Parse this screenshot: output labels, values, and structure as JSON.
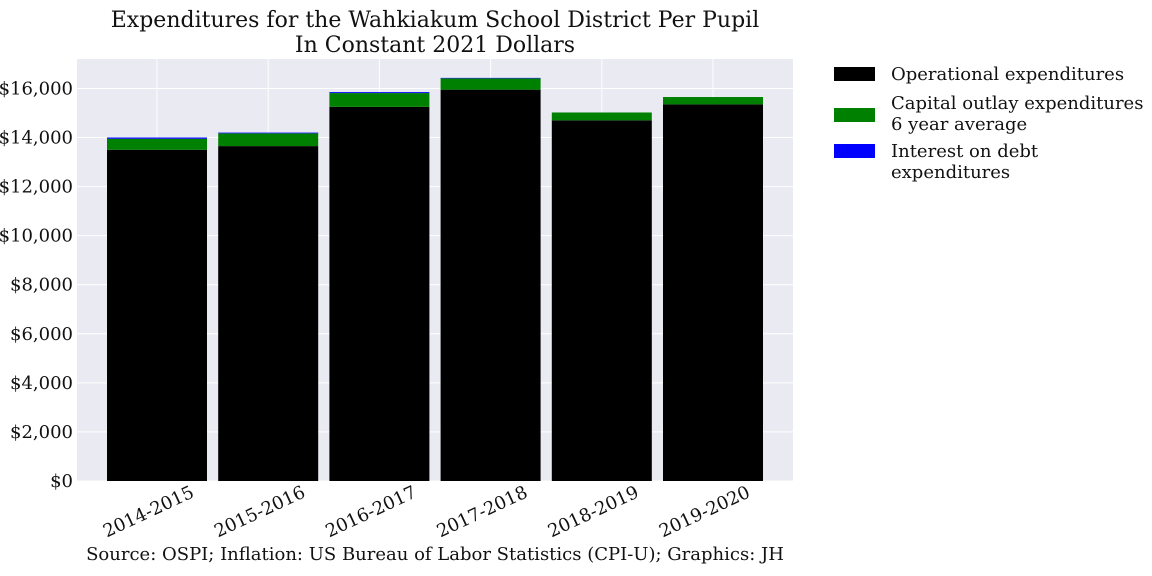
{
  "chart_data": {
    "type": "bar",
    "stacked": true,
    "title": [
      "Expenditures for the Wahkiakum School District Per Pupil",
      "In Constant 2021 Dollars"
    ],
    "source": "Source: OSPI; Inflation: US Bureau of Labor Statistics (CPI-U); Graphics: JH",
    "categories": [
      "2014-2015",
      "2015-2016",
      "2016-2017",
      "2017-2018",
      "2018-2019",
      "2019-2020"
    ],
    "series": [
      {
        "name": "Operational expenditures",
        "color": "#000000",
        "values": [
          13500,
          13650,
          15250,
          15950,
          14700,
          15350
        ]
      },
      {
        "name": "Capital outlay expenditures\n6 year average",
        "color": "#008000",
        "values": [
          450,
          520,
          560,
          460,
          320,
          300
        ]
      },
      {
        "name": "Interest on debt expenditures",
        "color": "#0000ff",
        "values": [
          50,
          30,
          40,
          20,
          0,
          0
        ]
      }
    ],
    "ylim": [
      0,
      17200
    ],
    "yticks": [
      0,
      2000,
      4000,
      6000,
      8000,
      10000,
      12000,
      14000,
      16000
    ],
    "ytick_labels": [
      "$0",
      "$2,000",
      "$4,000",
      "$6,000",
      "$8,000",
      "$10,000",
      "$12,000",
      "$14,000",
      "$16,000"
    ],
    "grid": true,
    "legend_position": "outside-right"
  }
}
